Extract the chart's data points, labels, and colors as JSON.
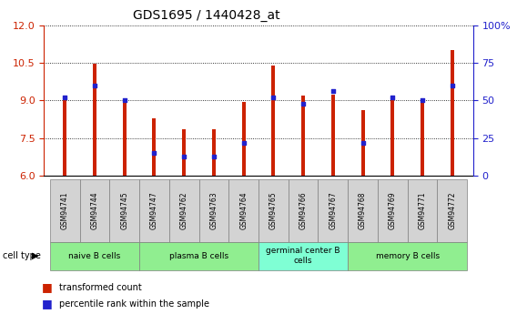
{
  "title": "GDS1695 / 1440428_at",
  "samples": [
    "GSM94741",
    "GSM94744",
    "GSM94745",
    "GSM94747",
    "GSM94762",
    "GSM94763",
    "GSM94764",
    "GSM94765",
    "GSM94766",
    "GSM94767",
    "GSM94768",
    "GSM94769",
    "GSM94771",
    "GSM94772"
  ],
  "transformed_count": [
    9.05,
    10.45,
    9.0,
    8.3,
    7.85,
    7.85,
    8.95,
    10.4,
    9.2,
    9.25,
    8.6,
    9.1,
    9.0,
    11.0
  ],
  "percentile_rank": [
    52,
    60,
    50,
    15,
    13,
    13,
    22,
    52,
    48,
    56,
    22,
    52,
    50,
    60
  ],
  "ylim_left": [
    6,
    12
  ],
  "ylim_right": [
    0,
    100
  ],
  "yticks_left": [
    6,
    7.5,
    9,
    10.5,
    12
  ],
  "yticks_right": [
    0,
    25,
    50,
    75,
    100
  ],
  "cell_groups": [
    {
      "label": "naive B cells",
      "start": 0,
      "end": 3,
      "color": "#90EE90"
    },
    {
      "label": "plasma B cells",
      "start": 3,
      "end": 7,
      "color": "#90EE90"
    },
    {
      "label": "germinal center B\ncells",
      "start": 7,
      "end": 10,
      "color": "#7FFFD4"
    },
    {
      "label": "memory B cells",
      "start": 10,
      "end": 14,
      "color": "#90EE90"
    }
  ],
  "bar_color": "#CC2200",
  "percentile_color": "#2222CC",
  "bar_width": 0.12,
  "tick_color_left": "#CC2200",
  "tick_color_right": "#2222CC",
  "legend_red_label": "transformed count",
  "legend_blue_label": "percentile rank within the sample"
}
